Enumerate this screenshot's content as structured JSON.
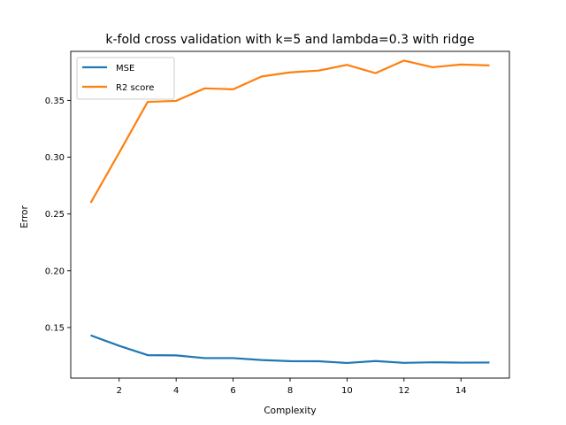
{
  "chart_data": {
    "type": "line",
    "title": "k-fold cross validation with k=5 and lambda=0.3 with ridge",
    "xlabel": "Complexity",
    "ylabel": "Error",
    "x": [
      1,
      2,
      3,
      4,
      5,
      6,
      7,
      8,
      9,
      10,
      11,
      12,
      13,
      14,
      15
    ],
    "xticks": [
      "2",
      "4",
      "6",
      "8",
      "10",
      "12",
      "14"
    ],
    "yticks": [
      "0.15",
      "0.20",
      "0.25",
      "0.30",
      "0.35"
    ],
    "xlim": [
      0.3,
      15.7
    ],
    "ylim": [
      0.1055,
      0.3932
    ],
    "grid": false,
    "legend_position": "upper-left",
    "series": [
      {
        "name": "MSE",
        "color": "#1f77b4",
        "values": [
          0.1431,
          0.1339,
          0.1257,
          0.1255,
          0.1231,
          0.1231,
          0.1214,
          0.1204,
          0.1203,
          0.1188,
          0.1205,
          0.1189,
          0.1194,
          0.1191,
          0.1192
        ]
      },
      {
        "name": "R2 score",
        "color": "#ff7f0e",
        "values": [
          0.2598,
          0.304,
          0.3487,
          0.3496,
          0.3606,
          0.3598,
          0.3711,
          0.3747,
          0.3763,
          0.3813,
          0.374,
          0.3851,
          0.3792,
          0.3816,
          0.3808
        ]
      }
    ]
  }
}
